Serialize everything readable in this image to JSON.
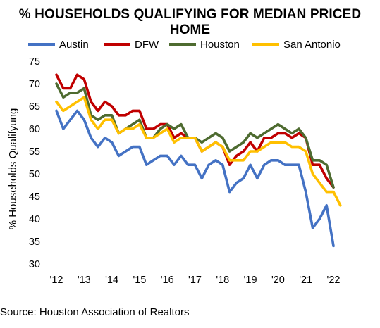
{
  "chart_data": {
    "type": "line",
    "title": "% HOUSEHOLDS QUALIFYING FOR MEDIAN PRICED HOME",
    "ylabel": "% Households Qualifyung",
    "xlabel": "",
    "source": "Source: Houston Association of Realtors",
    "ylim": [
      30,
      75
    ],
    "yticks": [
      30,
      35,
      40,
      45,
      50,
      55,
      60,
      65,
      70,
      75
    ],
    "xlim": [
      2012,
      2022.5
    ],
    "xticks": [
      {
        "x": 2012,
        "label": "'12"
      },
      {
        "x": 2013,
        "label": "'13"
      },
      {
        "x": 2014,
        "label": "'14"
      },
      {
        "x": 2015,
        "label": "'15"
      },
      {
        "x": 2016,
        "label": "'16"
      },
      {
        "x": 2017,
        "label": "'17"
      },
      {
        "x": 2018,
        "label": "'18"
      },
      {
        "x": 2019,
        "label": "'19"
      },
      {
        "x": 2020,
        "label": "'20"
      },
      {
        "x": 2021,
        "label": "'21"
      },
      {
        "x": 2022,
        "label": "'22"
      }
    ],
    "grid": false,
    "legend_position": "top",
    "x": [
      2012.0,
      2012.25,
      2012.5,
      2012.75,
      2013.0,
      2013.25,
      2013.5,
      2013.75,
      2014.0,
      2014.25,
      2014.5,
      2014.75,
      2015.0,
      2015.25,
      2015.5,
      2015.75,
      2016.0,
      2016.25,
      2016.5,
      2016.75,
      2017.0,
      2017.25,
      2017.5,
      2017.75,
      2018.0,
      2018.25,
      2018.5,
      2018.75,
      2019.0,
      2019.25,
      2019.5,
      2019.75,
      2020.0,
      2020.25,
      2020.5,
      2020.75,
      2021.0,
      2021.25,
      2021.5,
      2021.75,
      2022.0,
      2022.25
    ],
    "series": [
      {
        "name": "Austin",
        "color": "#4472C4",
        "values": [
          64,
          60,
          62,
          64,
          62,
          58,
          56,
          58,
          57,
          54,
          55,
          56,
          56,
          52,
          53,
          54,
          54,
          52,
          54,
          52,
          52,
          49,
          52,
          53,
          52,
          46,
          48,
          49,
          52,
          49,
          52,
          53,
          53,
          52,
          52,
          52,
          46,
          38,
          40,
          43,
          34,
          null
        ]
      },
      {
        "name": "DFW",
        "color": "#C00000",
        "values": [
          72,
          69,
          69,
          72,
          71,
          66,
          64,
          66,
          65,
          63,
          63,
          64,
          64,
          60,
          60,
          61,
          61,
          58,
          59,
          58,
          58,
          55,
          56,
          57,
          56,
          52,
          54,
          55,
          57,
          55,
          58,
          58,
          59,
          59,
          58,
          59,
          58,
          52,
          52,
          49,
          47,
          null
        ]
      },
      {
        "name": "Houston",
        "color": "#4E6B30",
        "values": [
          70,
          67,
          68,
          68,
          69,
          63,
          62,
          63,
          63,
          59,
          60,
          61,
          62,
          58,
          58,
          60,
          61,
          60,
          61,
          58,
          58,
          57,
          58,
          59,
          58,
          55,
          56,
          57,
          59,
          58,
          59,
          60,
          61,
          60,
          59,
          60,
          58,
          53,
          53,
          52,
          47,
          null
        ]
      },
      {
        "name": "San Antonio",
        "color": "#FFC000",
        "values": [
          66,
          64,
          65,
          66,
          67,
          62,
          60,
          62,
          62,
          59,
          60,
          60,
          61,
          58,
          58,
          59,
          60,
          57,
          58,
          58,
          58,
          55,
          56,
          57,
          56,
          53,
          53,
          53,
          55,
          55,
          56,
          57,
          57,
          57,
          56,
          56,
          55,
          50,
          48,
          46,
          46,
          43
        ]
      }
    ]
  }
}
